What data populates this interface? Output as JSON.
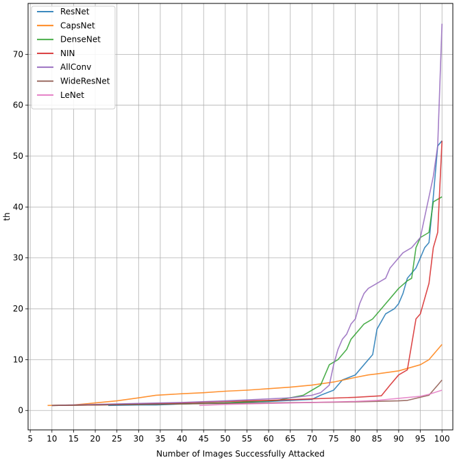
{
  "chart_data": {
    "type": "line",
    "xlabel": "Number of Images Successfully Attacked",
    "ylabel": "th",
    "xlim": [
      4.5,
      102.5
    ],
    "ylim": [
      -3.8,
      80.0
    ],
    "xticks": [
      5,
      10,
      15,
      20,
      25,
      30,
      35,
      40,
      45,
      50,
      55,
      60,
      65,
      70,
      75,
      80,
      85,
      90,
      95,
      100
    ],
    "yticks": [
      0,
      10,
      20,
      30,
      40,
      50,
      60,
      70
    ],
    "grid": true,
    "legend_position": "top-left",
    "series": [
      {
        "name": "ResNet",
        "color": "#1f77b4",
        "x": [
          23,
          30,
          34,
          40,
          50,
          60,
          70,
          72,
          75,
          77,
          80,
          82,
          84,
          85,
          87,
          89,
          90,
          91,
          92,
          93,
          94,
          95,
          96,
          97,
          98,
          99,
          100
        ],
        "y": [
          1,
          1.1,
          1.1,
          1.3,
          1.5,
          1.8,
          2.2,
          3,
          4,
          6,
          7,
          9,
          11,
          16,
          19,
          20,
          21,
          23,
          26,
          27,
          28,
          30,
          32,
          33,
          42,
          52,
          53
        ]
      },
      {
        "name": "CapsNet",
        "color": "#ff7f0e",
        "x": [
          9,
          15,
          20,
          25,
          30,
          34,
          40,
          45,
          50,
          55,
          60,
          65,
          70,
          75,
          80,
          83,
          85,
          90,
          95,
          97,
          100
        ],
        "y": [
          1,
          1.1,
          1.5,
          1.9,
          2.5,
          3,
          3.3,
          3.5,
          3.8,
          4.0,
          4.3,
          4.6,
          5.0,
          5.6,
          6.5,
          7.0,
          7.2,
          7.8,
          9,
          10,
          13
        ]
      },
      {
        "name": "DenseNet",
        "color": "#2ca02c",
        "x": [
          10,
          20,
          30,
          40,
          50,
          55,
          60,
          62,
          68,
          70,
          72,
          74,
          76,
          78,
          79,
          80,
          82,
          84,
          86,
          88,
          90,
          92,
          93,
          94,
          95,
          97,
          98,
          100
        ],
        "y": [
          1,
          1.1,
          1.2,
          1.3,
          1.5,
          1.7,
          1.9,
          2,
          3,
          4,
          5,
          9,
          10,
          12,
          14,
          15,
          17,
          18,
          20,
          22,
          24,
          25.5,
          26,
          32,
          34,
          35,
          41,
          42
        ]
      },
      {
        "name": "NIN",
        "color": "#d62728",
        "x": [
          10,
          20,
          30,
          40,
          50,
          60,
          70,
          80,
          86,
          88,
          90,
          92,
          94,
          95,
          97,
          98,
          99,
          100
        ],
        "y": [
          1,
          1.1,
          1.3,
          1.5,
          1.8,
          2.0,
          2.3,
          2.6,
          2.9,
          5,
          7,
          8,
          18,
          19,
          25,
          32,
          35,
          53
        ]
      },
      {
        "name": "AllConv",
        "color": "#9467bd",
        "x": [
          10,
          20,
          30,
          40,
          50,
          60,
          65,
          70,
          72,
          74,
          75,
          76,
          77,
          78,
          79,
          80,
          81,
          82,
          83,
          85,
          86,
          87,
          88,
          90,
          91,
          93,
          95,
          96,
          97,
          98,
          99,
          100
        ],
        "y": [
          1,
          1.2,
          1.4,
          1.6,
          1.9,
          2.3,
          2.5,
          3,
          3.5,
          5,
          9,
          12,
          14,
          15,
          17,
          18,
          21,
          23,
          24,
          25,
          25.5,
          26,
          28,
          30,
          31,
          32,
          34,
          38,
          42,
          46,
          52,
          76
        ]
      },
      {
        "name": "WideResNet",
        "color": "#8c564b",
        "x": [
          10,
          20,
          30,
          40,
          50,
          60,
          70,
          80,
          90,
          92,
          94,
          96,
          97,
          98,
          99,
          100
        ],
        "y": [
          1,
          1.1,
          1.2,
          1.3,
          1.4,
          1.5,
          1.6,
          1.7,
          1.9,
          2,
          2.4,
          2.8,
          3,
          4,
          5,
          6
        ]
      },
      {
        "name": "LeNet",
        "color": "#e377c2",
        "x": [
          44,
          50,
          60,
          70,
          80,
          85,
          90,
          95,
          97,
          100
        ],
        "y": [
          1,
          1.2,
          1.4,
          1.6,
          1.8,
          2,
          2.4,
          2.8,
          3.2,
          4
        ]
      }
    ]
  }
}
